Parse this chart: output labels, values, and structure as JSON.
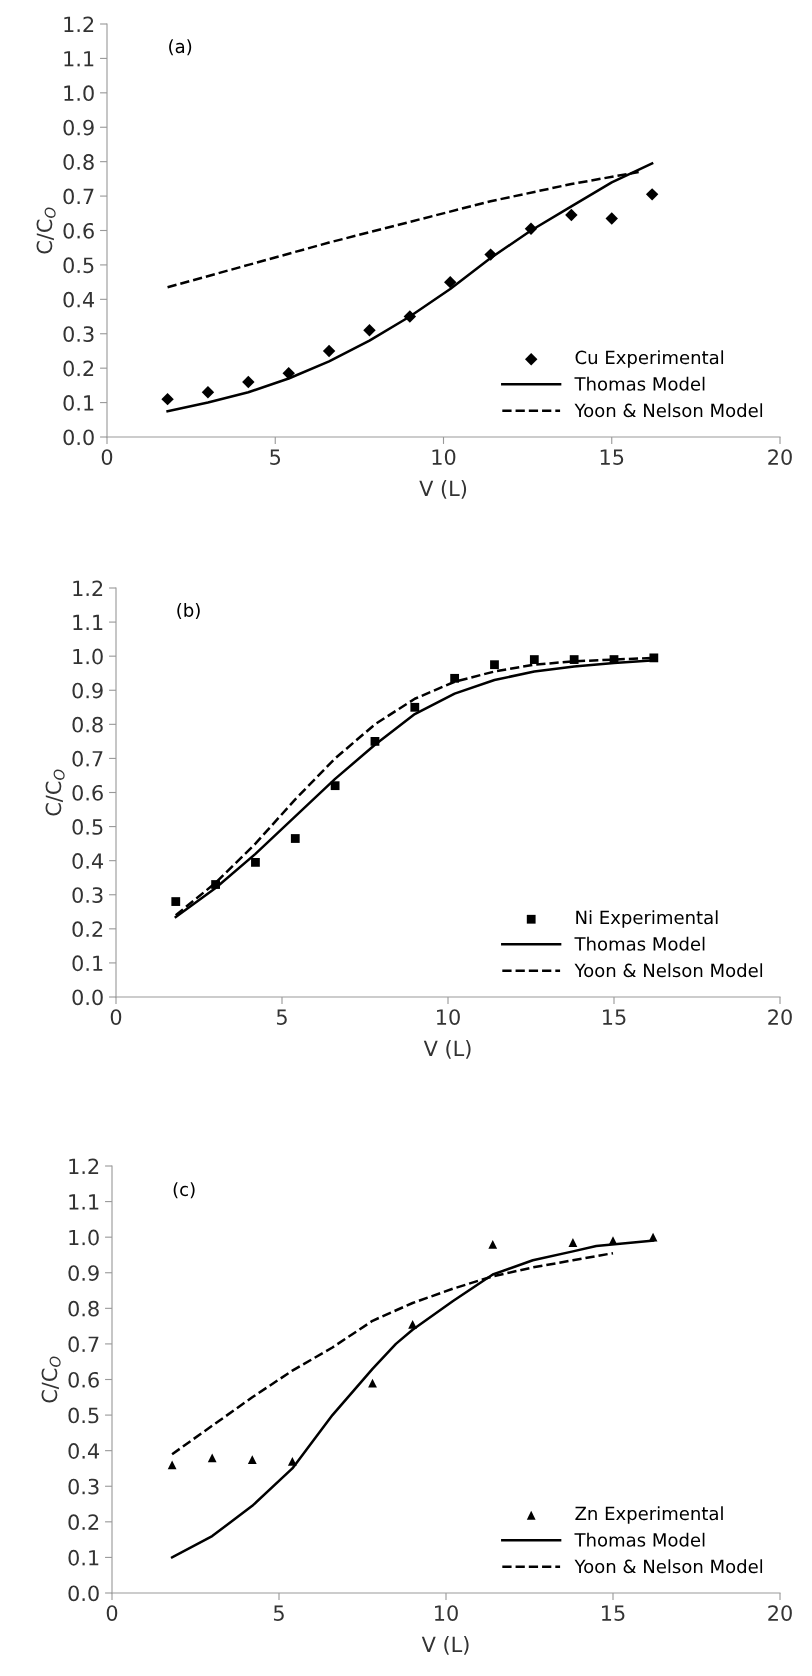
{
  "chart_data": [
    {
      "type": "scatter",
      "annotations": [
        "(a)"
      ],
      "xlabel": "V (L)",
      "ylabel": "C/C$_{O}$",
      "xlim": [
        0,
        20
      ],
      "xticks": [
        0,
        5,
        10,
        15,
        20
      ],
      "ylim": [
        0,
        1.2
      ],
      "yticks": [
        {
          "value": 0,
          "label": "0.0"
        },
        {
          "value": 0.1,
          "label": "0.1"
        },
        {
          "value": 0.2,
          "label": "0.2"
        },
        {
          "value": 0.3,
          "label": "0.3"
        },
        {
          "value": 0.4,
          "label": "0.4"
        },
        {
          "value": 0.5,
          "label": "0.5"
        },
        {
          "value": 0.6,
          "label": "0.6"
        },
        {
          "value": 0.7,
          "label": "0.7"
        },
        {
          "value": 0.8,
          "label": "0.8"
        },
        {
          "value": 0.9,
          "label": "0.9"
        },
        {
          "value": 1,
          "label": "1.0"
        },
        {
          "value": 1.1,
          "label": "1.1"
        },
        {
          "value": 1.2,
          "label": "1.2"
        }
      ],
      "grid": false,
      "legend": "bottom right",
      "series": [
        {
          "name": "Cu Experimental",
          "marker": "diamond",
          "color": "#000000",
          "x": [
            1.8,
            3.0,
            4.2,
            5.4,
            6.6,
            7.8,
            9.0,
            10.2,
            11.4,
            12.6,
            13.8,
            15.0,
            16.2
          ],
          "values": [
            0.11,
            0.13,
            0.16,
            0.185,
            0.25,
            0.31,
            0.35,
            0.45,
            0.53,
            0.605,
            0.645,
            0.635,
            0.705
          ]
        },
        {
          "name": "Thomas Model",
          "type": "line",
          "line_style": "solid",
          "color": "#000000",
          "x": [
            1.8,
            3.0,
            4.2,
            5.4,
            6.6,
            7.8,
            9.0,
            10.2,
            11.4,
            12.6,
            13.8,
            15.0,
            16.2
          ],
          "values": [
            0.075,
            0.1,
            0.13,
            0.17,
            0.22,
            0.28,
            0.35,
            0.43,
            0.52,
            0.6,
            0.67,
            0.74,
            0.795
          ]
        },
        {
          "name": "Yoon & Nelson Model",
          "type": "line",
          "line_style": "dashed",
          "color": "#000000",
          "x": [
            1.8,
            4.2,
            6.6,
            9.0,
            11.4,
            13.8,
            15.8
          ],
          "values": [
            0.435,
            0.5,
            0.565,
            0.625,
            0.685,
            0.735,
            0.77
          ]
        }
      ]
    },
    {
      "type": "scatter",
      "annotations": [
        "(b)"
      ],
      "xlabel": "V (L)",
      "ylabel": "C/C$_{O}$",
      "xlim": [
        0,
        20
      ],
      "xticks": [
        0,
        5,
        10,
        15,
        20
      ],
      "ylim": [
        0,
        1.2
      ],
      "yticks": [
        {
          "value": 0,
          "label": "0.0"
        },
        {
          "value": 0.1,
          "label": "0.1"
        },
        {
          "value": 0.2,
          "label": "0.2"
        },
        {
          "value": 0.3,
          "label": "0.3"
        },
        {
          "value": 0.4,
          "label": "0.4"
        },
        {
          "value": 0.5,
          "label": "0.5"
        },
        {
          "value": 0.6,
          "label": "0.6"
        },
        {
          "value": 0.7,
          "label": "0.7"
        },
        {
          "value": 0.8,
          "label": "0.8"
        },
        {
          "value": 0.9,
          "label": "0.9"
        },
        {
          "value": 1,
          "label": "1.0"
        },
        {
          "value": 1.1,
          "label": "1.1"
        },
        {
          "value": 1.2,
          "label": "1.2"
        }
      ],
      "grid": false,
      "legend": "bottom right",
      "series": [
        {
          "name": "Ni Experimental",
          "marker": "square",
          "color": "#000000",
          "x": [
            1.8,
            3.0,
            4.2,
            5.4,
            6.6,
            7.8,
            9.0,
            10.2,
            11.4,
            12.6,
            13.8,
            15.0,
            16.2
          ],
          "values": [
            0.28,
            0.33,
            0.395,
            0.465,
            0.62,
            0.75,
            0.85,
            0.935,
            0.975,
            0.99,
            0.99,
            0.99,
            0.995
          ]
        },
        {
          "name": "Thomas Model",
          "type": "line",
          "line_style": "solid",
          "color": "#000000",
          "x": [
            1.8,
            3.0,
            4.2,
            5.4,
            6.6,
            7.8,
            9.0,
            10.2,
            11.4,
            12.6,
            13.8,
            15.0,
            16.2
          ],
          "values": [
            0.235,
            0.32,
            0.42,
            0.53,
            0.64,
            0.74,
            0.83,
            0.89,
            0.93,
            0.955,
            0.97,
            0.98,
            0.988
          ]
        },
        {
          "name": "Yoon & Nelson Model",
          "type": "line",
          "line_style": "dashed",
          "color": "#000000",
          "x": [
            1.8,
            3.0,
            4.2,
            5.4,
            6.6,
            7.8,
            9.0,
            10.2,
            11.4,
            12.6,
            13.8,
            15.0,
            16.2
          ],
          "values": [
            0.24,
            0.335,
            0.45,
            0.58,
            0.7,
            0.8,
            0.875,
            0.925,
            0.955,
            0.975,
            0.985,
            0.99,
            0.995
          ]
        }
      ]
    },
    {
      "type": "scatter",
      "annotations": [
        "(c)"
      ],
      "xlabel": "V (L)",
      "ylabel": "C/C$_{O}$",
      "xlim": [
        0,
        20
      ],
      "xticks": [
        0,
        5,
        10,
        15,
        20
      ],
      "ylim": [
        0,
        1.2
      ],
      "yticks": [
        {
          "value": 0,
          "label": "0.0"
        },
        {
          "value": 0.1,
          "label": "0.1"
        },
        {
          "value": 0.2,
          "label": "0.2"
        },
        {
          "value": 0.3,
          "label": "0.3"
        },
        {
          "value": 0.4,
          "label": "0.4"
        },
        {
          "value": 0.5,
          "label": "0.5"
        },
        {
          "value": 0.6,
          "label": "0.6"
        },
        {
          "value": 0.7,
          "label": "0.7"
        },
        {
          "value": 0.8,
          "label": "0.8"
        },
        {
          "value": 0.9,
          "label": "0.9"
        },
        {
          "value": 1,
          "label": "1.0"
        },
        {
          "value": 1.1,
          "label": "1.1"
        },
        {
          "value": 1.2,
          "label": "1.2"
        }
      ],
      "grid": false,
      "legend": "bottom right",
      "series": [
        {
          "name": "Zn Experimental",
          "marker": "triangle",
          "color": "#000000",
          "x": [
            1.8,
            3.0,
            4.2,
            5.4,
            7.8,
            9.0,
            11.4,
            13.8,
            15.0,
            16.2
          ],
          "values": [
            0.36,
            0.38,
            0.375,
            0.37,
            0.59,
            0.755,
            0.98,
            0.985,
            0.99,
            1.0
          ]
        },
        {
          "name": "Thomas Model",
          "type": "line",
          "line_style": "solid",
          "color": "#000000",
          "x": [
            1.8,
            3.0,
            4.2,
            5.4,
            6.6,
            7.8,
            8.5,
            9.0,
            10.2,
            11.4,
            12.6,
            13.8,
            14.5,
            16.2
          ],
          "values": [
            0.1,
            0.16,
            0.245,
            0.35,
            0.5,
            0.63,
            0.7,
            0.74,
            0.82,
            0.895,
            0.935,
            0.96,
            0.975,
            0.99
          ]
        },
        {
          "name": "Yoon & Nelson Model",
          "type": "line",
          "line_style": "dashed",
          "color": "#000000",
          "x": [
            1.8,
            3.0,
            4.2,
            5.4,
            6.6,
            7.8,
            9.0,
            10.2,
            11.4,
            12.6,
            13.8,
            15.0
          ],
          "values": [
            0.39,
            0.47,
            0.55,
            0.625,
            0.69,
            0.765,
            0.815,
            0.855,
            0.89,
            0.915,
            0.935,
            0.955
          ]
        }
      ]
    }
  ]
}
